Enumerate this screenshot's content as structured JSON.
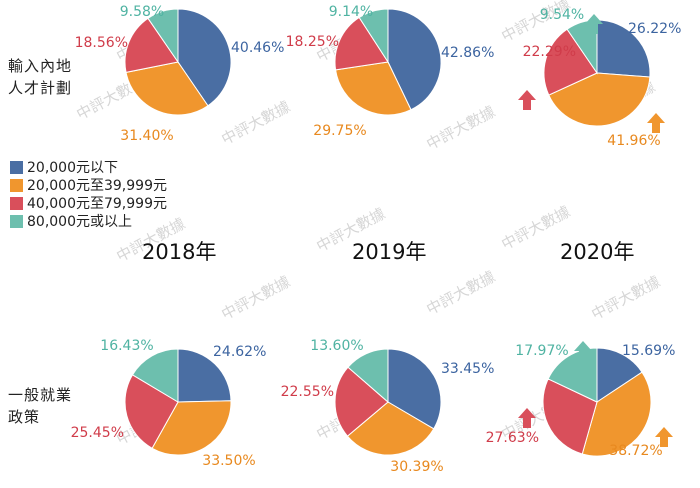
{
  "colors": {
    "blue": "#4a6ea3",
    "orange": "#f0962e",
    "red": "#d94f5b",
    "teal": "#6dbfae",
    "text_blue": "#3c64a0",
    "text_orange": "#e8891f",
    "text_red": "#d03c4a",
    "text_teal": "#4fb3a2"
  },
  "watermark": "中評大數據",
  "chart_data": {
    "type": "pie",
    "legend": [
      {
        "label": "20,000元以下",
        "color": "#4a6ea3"
      },
      {
        "label": "20,000元至39,999元",
        "color": "#f0962e"
      },
      {
        "label": "40,000元至79,999元",
        "color": "#d94f5b"
      },
      {
        "label": "80,000元或以上",
        "color": "#6dbfae"
      }
    ],
    "rows": [
      {
        "label_lines": [
          "輸入內地",
          "人才計劃"
        ]
      },
      {
        "label_lines": [
          "一般就業",
          "政策"
        ]
      }
    ],
    "years": [
      "2018年",
      "2019年",
      "2020年"
    ],
    "pies": [
      {
        "row": 0,
        "year": "2018年",
        "values": [
          40.46,
          31.4,
          18.56,
          9.58
        ],
        "labels": [
          "40.46%",
          "31.40%",
          "18.56%",
          "9.58%"
        ],
        "arrows": []
      },
      {
        "row": 0,
        "year": "2019年",
        "values": [
          42.86,
          29.75,
          18.25,
          9.14
        ],
        "labels": [
          "42.86%",
          "29.75%",
          "18.25%",
          "9.14%"
        ],
        "arrows": []
      },
      {
        "row": 0,
        "year": "2020年",
        "values": [
          26.22,
          41.96,
          22.29,
          9.54
        ],
        "labels": [
          "26.22%",
          "41.96%",
          "22.29%",
          "9.54%"
        ],
        "arrows": [
          "up",
          "up",
          "up"
        ]
      },
      {
        "row": 1,
        "year": "2018年",
        "values": [
          24.62,
          33.5,
          25.45,
          16.43
        ],
        "labels": [
          "24.62%",
          "33.50%",
          "25.45%",
          "16.43%"
        ],
        "arrows": []
      },
      {
        "row": 1,
        "year": "2019年",
        "values": [
          33.45,
          30.39,
          22.55,
          13.6
        ],
        "labels": [
          "33.45%",
          "30.39%",
          "22.55%",
          "13.60%"
        ],
        "arrows": []
      },
      {
        "row": 1,
        "year": "2020年",
        "values": [
          15.69,
          38.72,
          27.63,
          17.97
        ],
        "labels": [
          "15.69%",
          "38.72%",
          "27.63%",
          "17.97%"
        ],
        "arrows": [
          "up",
          "up",
          "up"
        ]
      }
    ]
  }
}
